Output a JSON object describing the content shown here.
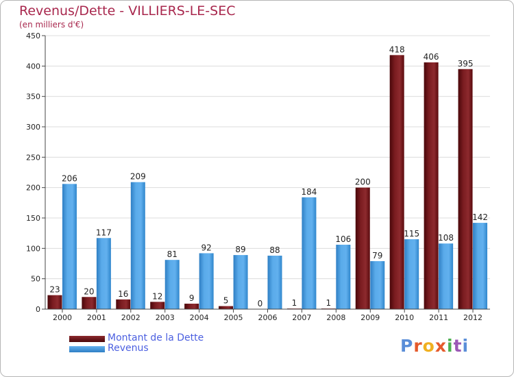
{
  "chart_data": {
    "type": "bar",
    "title": "Revenus/Dette - VILLIERS-LE-SEC",
    "subtitle": "(en milliers d'€)",
    "categories": [
      "2000",
      "2001",
      "2002",
      "2003",
      "2004",
      "2005",
      "2006",
      "2007",
      "2008",
      "2009",
      "2010",
      "2011",
      "2012"
    ],
    "series": [
      {
        "name": "Montant de la Dette",
        "color": "#6b0f12",
        "values": [
          23,
          20,
          16,
          12,
          9,
          5,
          0,
          1,
          1,
          200,
          418,
          406,
          395
        ]
      },
      {
        "name": "Revenus",
        "color": "#3b93d6",
        "values": [
          206,
          117,
          209,
          81,
          92,
          89,
          88,
          184,
          106,
          79,
          115,
          108,
          142
        ]
      }
    ],
    "ylim": [
      0,
      450
    ],
    "yticks": [
      0,
      50,
      100,
      150,
      200,
      250,
      300,
      350,
      400,
      450
    ],
    "grid": true,
    "legend_position": "bottom-left"
  },
  "brand": {
    "letters": [
      "P",
      "r",
      "o",
      "x",
      "i",
      "t",
      "i"
    ]
  }
}
